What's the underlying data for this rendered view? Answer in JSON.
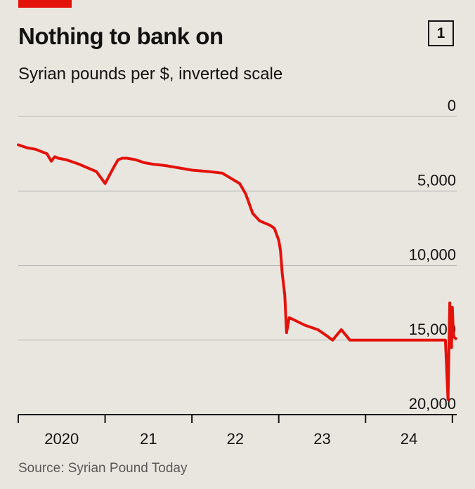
{
  "header": {
    "title": "Nothing to bank on",
    "badge": "1",
    "subtitle": "Syrian pounds per $, inverted scale",
    "accent_color": "#e3120b"
  },
  "chart_data": {
    "type": "line",
    "title": "Nothing to bank on",
    "subtitle": "Syrian pounds per $, inverted scale",
    "ylabel": "",
    "xlabel": "",
    "y_inverted": true,
    "ylim": [
      0,
      20000
    ],
    "yticks": [
      0,
      5000,
      10000,
      15000,
      20000
    ],
    "ytick_labels": [
      "0",
      "5,000",
      "10,000",
      "15,000",
      "20,000"
    ],
    "xlim": [
      2020.0,
      2025.05
    ],
    "xticks": [
      2020,
      2021,
      2022,
      2023,
      2024,
      2025
    ],
    "xtick_labels": [
      "2020",
      "21",
      "22",
      "23",
      "24"
    ],
    "grid": true,
    "line_color": "#e3120b",
    "series": [
      {
        "x": [
          2020.0,
          2020.1,
          2020.2,
          2020.33,
          2020.38,
          2020.42,
          2020.46,
          2020.55,
          2020.7,
          2020.9,
          2021.0,
          2021.1,
          2021.15,
          2021.2,
          2021.25,
          2021.35,
          2021.45,
          2021.55,
          2021.7,
          2021.9,
          2022.0,
          2022.2,
          2022.35,
          2022.55,
          2022.62,
          2022.7,
          2022.78,
          2022.9,
          2022.95,
          2023.0,
          2023.02,
          2023.04,
          2023.07,
          2023.09,
          2023.12,
          2023.16,
          2023.3,
          2023.45,
          2023.55,
          2023.62,
          2023.72,
          2023.82,
          2023.95,
          2024.05,
          2024.12,
          2024.2,
          2024.35,
          2024.55,
          2024.75,
          2024.9,
          2024.92,
          2024.95,
          2024.97,
          2024.99,
          2025.0,
          2025.01,
          2025.02,
          2025.04
        ],
        "values": [
          1900,
          2100,
          2200,
          2500,
          3000,
          2700,
          2800,
          2900,
          3200,
          3700,
          4500,
          3400,
          2900,
          2800,
          2800,
          2900,
          3100,
          3200,
          3300,
          3500,
          3600,
          3700,
          3800,
          4500,
          5200,
          6500,
          7000,
          7300,
          7500,
          8300,
          9000,
          10500,
          12000,
          14500,
          13500,
          13600,
          14000,
          14300,
          14700,
          15000,
          14300,
          15000,
          15000,
          15000,
          15000,
          15000,
          15000,
          15000,
          15000,
          15000,
          15000,
          19000,
          12500,
          15500,
          12800,
          14500,
          14800,
          14900
        ]
      }
    ]
  },
  "source": "Source: Syrian Pound Today"
}
